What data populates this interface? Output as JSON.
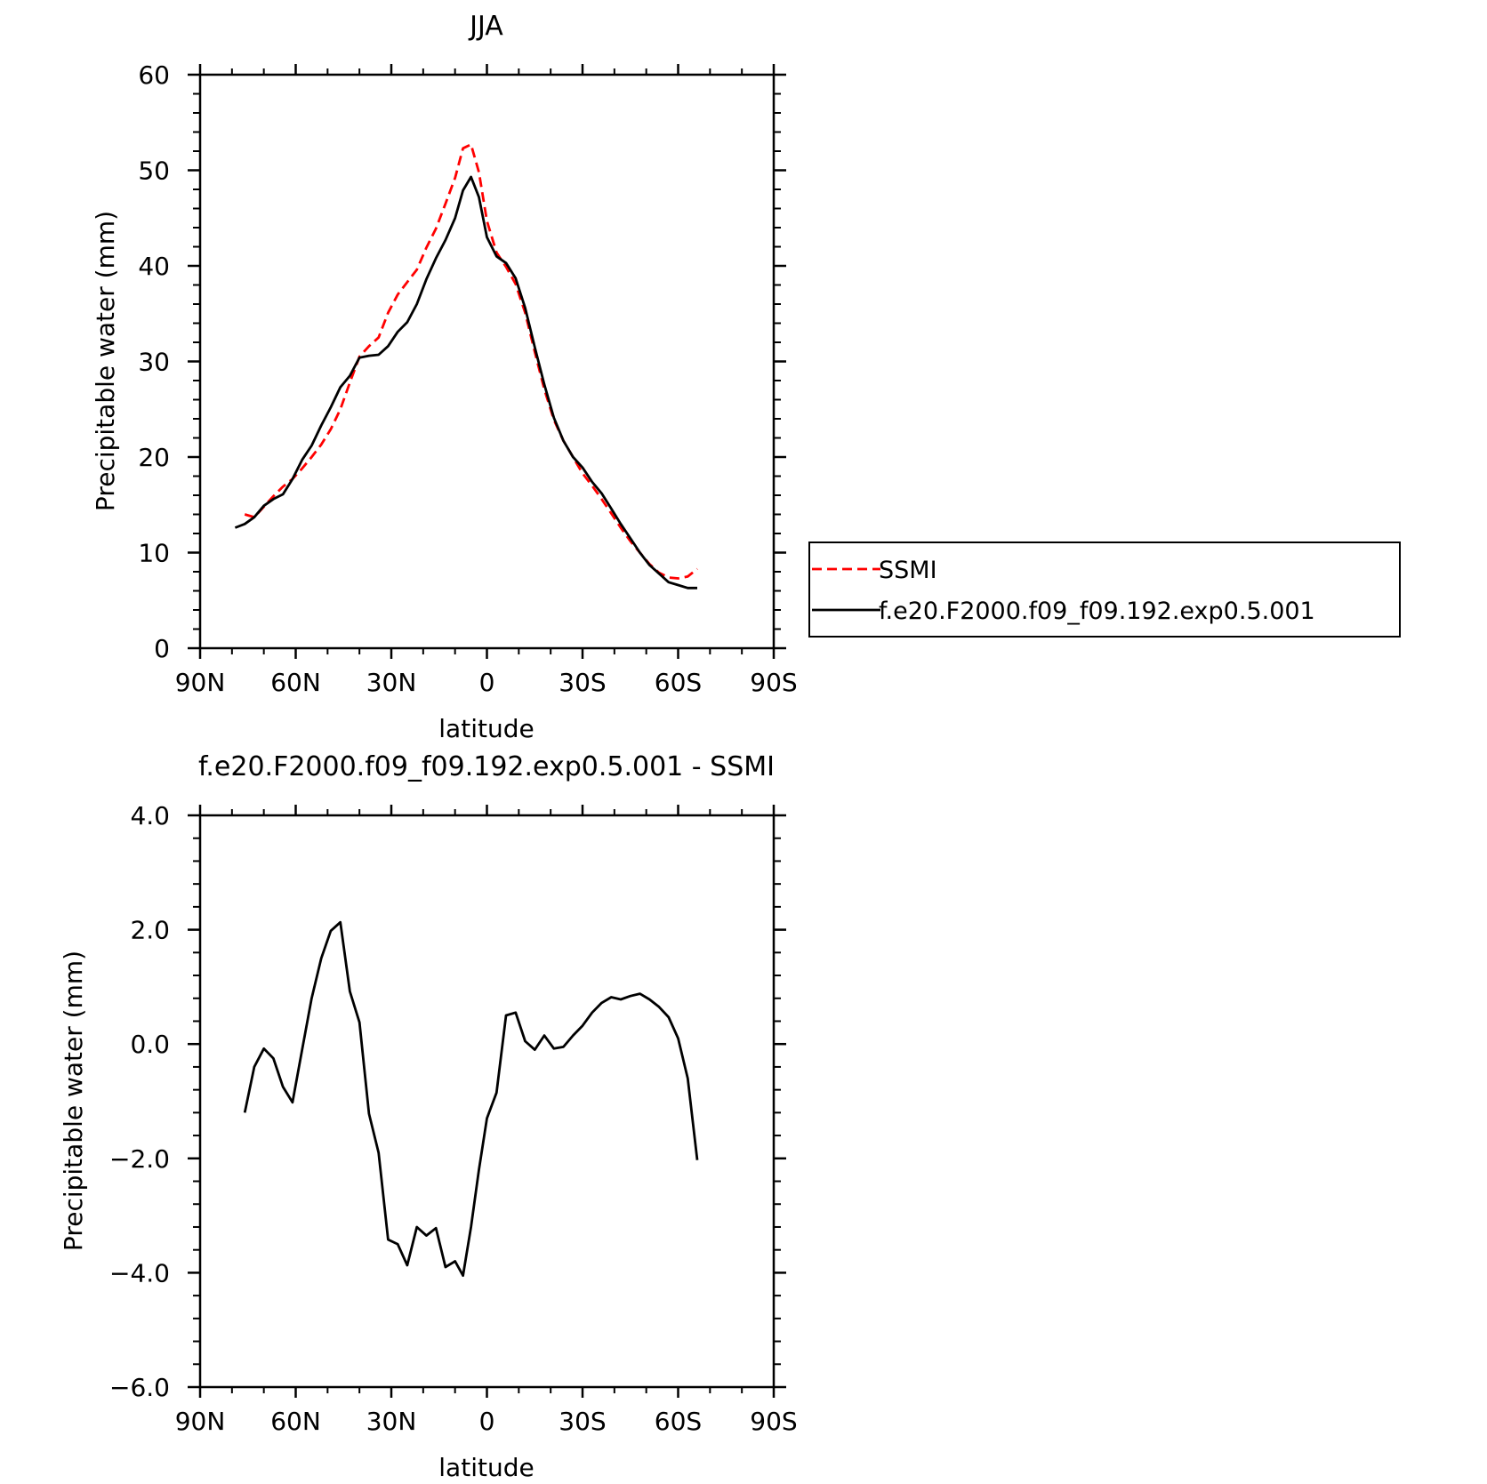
{
  "chart_data": [
    {
      "type": "line",
      "title": "JJA",
      "xlabel": "latitude",
      "ylabel": "Precipitable water (mm)",
      "xlim": [
        -90,
        90
      ],
      "ylim": [
        0,
        60
      ],
      "xticks": [
        {
          "value": -90,
          "label": "90N"
        },
        {
          "value": -60,
          "label": "60N"
        },
        {
          "value": -30,
          "label": "30N"
        },
        {
          "value": 0,
          "label": "0"
        },
        {
          "value": 30,
          "label": "30S"
        },
        {
          "value": 60,
          "label": "60S"
        },
        {
          "value": 90,
          "label": "90S"
        }
      ],
      "yticks": [
        {
          "value": 0,
          "label": "0"
        },
        {
          "value": 10,
          "label": "10"
        },
        {
          "value": 20,
          "label": "20"
        },
        {
          "value": 30,
          "label": "30"
        },
        {
          "value": 40,
          "label": "40"
        },
        {
          "value": 50,
          "label": "50"
        },
        {
          "value": 60,
          "label": "60"
        }
      ],
      "legend": {
        "placement": "right"
      },
      "series": [
        {
          "name": "SSMI",
          "color": "#ff0000",
          "style": "dashed",
          "x": [
            -76,
            -73,
            -70,
            -67,
            -64,
            -61,
            -58,
            -55,
            -52,
            -49,
            -46,
            -43,
            -40,
            -37,
            -34,
            -31,
            -28,
            -25,
            -22,
            -19,
            -16,
            -13,
            -10,
            -7.5,
            -5,
            -2.5,
            0,
            3,
            6,
            9,
            12,
            15,
            18,
            21,
            24,
            27,
            30,
            33,
            36,
            39,
            42,
            45,
            48,
            51,
            54,
            57,
            60,
            63,
            66
          ],
          "y": [
            14.0,
            13.7,
            14.8,
            15.9,
            16.9,
            17.7,
            18.8,
            20.0,
            21.3,
            22.9,
            25.0,
            27.8,
            30.5,
            31.6,
            32.5,
            35.1,
            37.0,
            38.3,
            39.6,
            41.9,
            43.9,
            46.5,
            49.2,
            52.3,
            52.7,
            49.8,
            44.7,
            41.4,
            39.9,
            38.1,
            35.1,
            31.0,
            27.1,
            23.9,
            21.7,
            20.0,
            18.3,
            17.0,
            15.6,
            14.1,
            12.6,
            11.2,
            10.0,
            8.8,
            7.9,
            7.4,
            7.3,
            7.5,
            8.3
          ]
        },
        {
          "name": "f.e20.F2000.f09_f09.192.exp0.5.001",
          "color": "#000000",
          "style": "solid",
          "x": [
            -79,
            -76,
            -73,
            -70,
            -67,
            -64,
            -61,
            -58,
            -55,
            -52,
            -49,
            -46,
            -43,
            -40,
            -37,
            -34,
            -31,
            -28,
            -25,
            -22,
            -19,
            -16,
            -13,
            -10,
            -7.5,
            -5,
            -2.5,
            0,
            3,
            6,
            9,
            12,
            15,
            18,
            21,
            24,
            27,
            30,
            33,
            36,
            39,
            42,
            45,
            48,
            51,
            54,
            57,
            60,
            63,
            66
          ],
          "y": [
            12.6,
            13.0,
            13.7,
            14.9,
            15.6,
            16.1,
            17.7,
            19.7,
            21.2,
            23.3,
            25.2,
            27.3,
            28.5,
            30.4,
            30.6,
            30.7,
            31.6,
            33.1,
            34.1,
            36.0,
            38.6,
            40.8,
            42.7,
            45.0,
            47.9,
            49.3,
            47.2,
            43.0,
            41.0,
            40.3,
            38.7,
            35.6,
            31.5,
            27.6,
            24.1,
            21.7,
            20.0,
            18.9,
            17.4,
            16.2,
            14.6,
            13.0,
            11.5,
            10.0,
            8.7,
            7.8,
            6.9,
            6.6,
            6.3,
            6.3
          ]
        }
      ]
    },
    {
      "type": "line",
      "title": "f.e20.F2000.f09_f09.192.exp0.5.001 - SSMI",
      "xlabel": "latitude",
      "ylabel": "Precipitable water (mm)",
      "xlim": [
        -90,
        90
      ],
      "ylim": [
        -6,
        4
      ],
      "xticks": [
        {
          "value": -90,
          "label": "90N"
        },
        {
          "value": -60,
          "label": "60N"
        },
        {
          "value": -30,
          "label": "30N"
        },
        {
          "value": 0,
          "label": "0"
        },
        {
          "value": 30,
          "label": "30S"
        },
        {
          "value": 60,
          "label": "60S"
        },
        {
          "value": 90,
          "label": "90S"
        }
      ],
      "yticks": [
        {
          "value": -6,
          "label": "−6.0"
        },
        {
          "value": -4,
          "label": "−4.0"
        },
        {
          "value": -2,
          "label": "−2.0"
        },
        {
          "value": 0,
          "label": "0.0"
        },
        {
          "value": 2,
          "label": "2.0"
        },
        {
          "value": 4,
          "label": "4.0"
        }
      ],
      "series": [
        {
          "color": "#000000",
          "style": "solid",
          "x": [
            -76,
            -73,
            -70,
            -67,
            -64,
            -61,
            -58,
            -55,
            -52,
            -49,
            -46,
            -43,
            -40,
            -37,
            -34,
            -31,
            -28,
            -25,
            -22,
            -19,
            -16,
            -13,
            -10,
            -7.5,
            -5,
            -2.5,
            0,
            3,
            6,
            9,
            12,
            15,
            18,
            21,
            24,
            27,
            30,
            33,
            36,
            39,
            42,
            45,
            48,
            51,
            54,
            57,
            60,
            63,
            66
          ],
          "y": [
            -1.2,
            -0.4,
            -0.08,
            -0.25,
            -0.75,
            -1.02,
            -0.1,
            0.8,
            1.5,
            1.98,
            2.13,
            0.92,
            0.38,
            -1.22,
            -1.9,
            -3.42,
            -3.5,
            -3.87,
            -3.2,
            -3.35,
            -3.22,
            -3.9,
            -3.8,
            -4.05,
            -3.2,
            -2.2,
            -1.3,
            -0.85,
            0.5,
            0.55,
            0.05,
            -0.1,
            0.15,
            -0.08,
            -0.05,
            0.15,
            0.32,
            0.55,
            0.72,
            0.82,
            0.78,
            0.84,
            0.88,
            0.78,
            0.65,
            0.47,
            0.1,
            -0.6,
            -2.03
          ]
        }
      ]
    }
  ]
}
